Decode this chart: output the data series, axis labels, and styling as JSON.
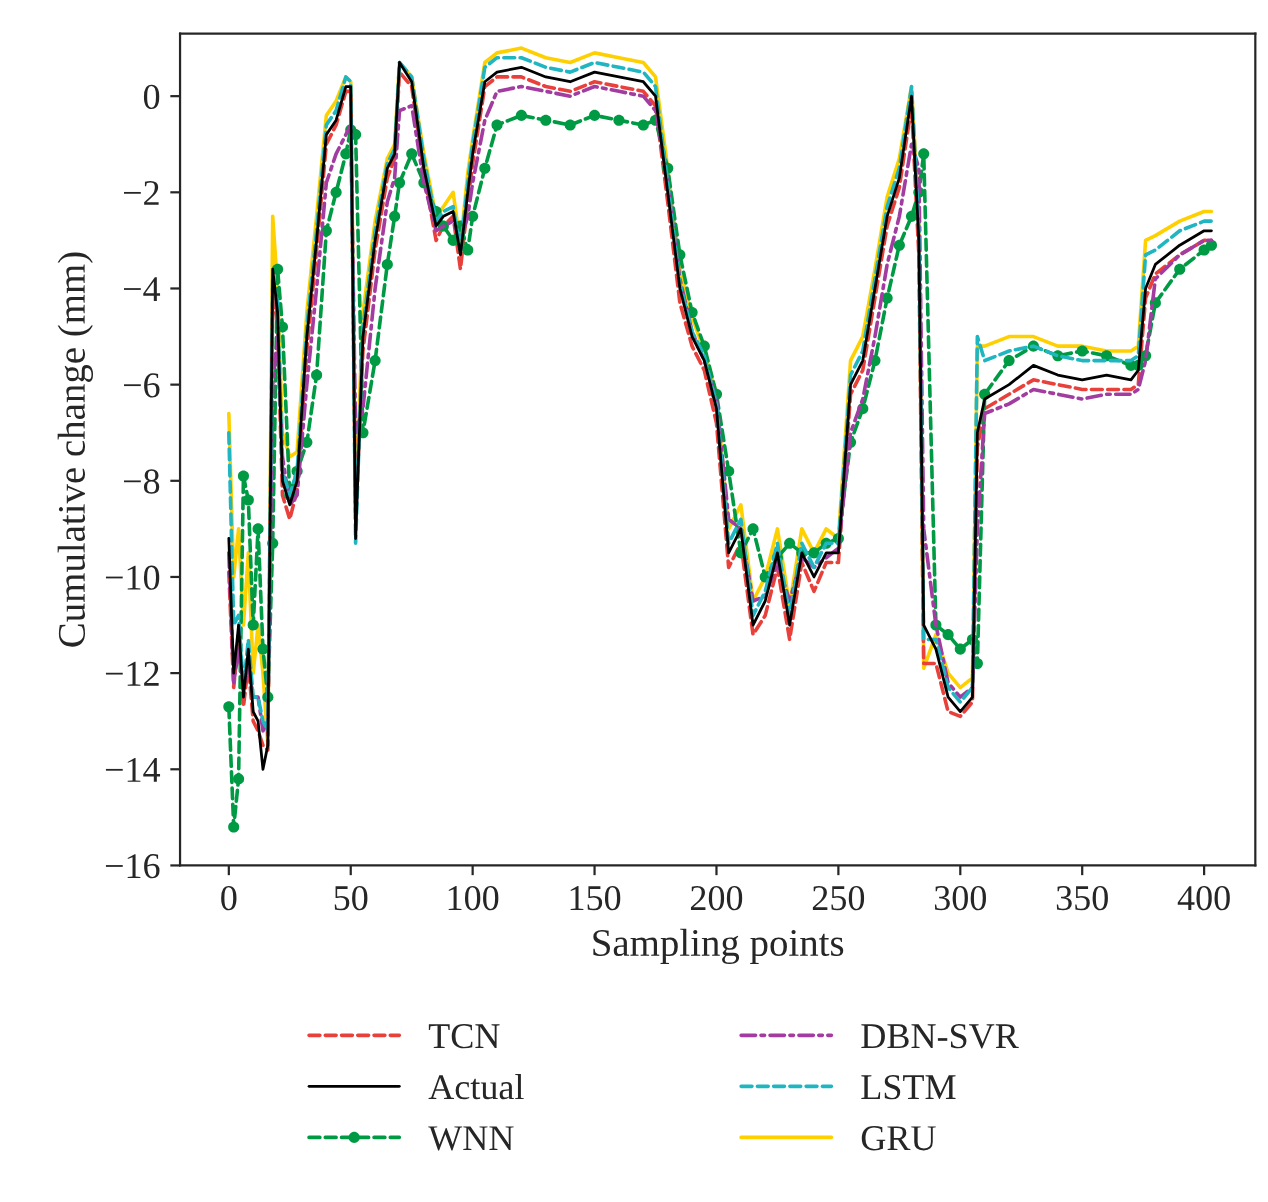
{
  "chart_data": {
    "type": "line",
    "xlabel": "Sampling points",
    "ylabel": "Cumulative change (mm)",
    "x": [
      0,
      2,
      4,
      6,
      8,
      10,
      12,
      14,
      16,
      18,
      20,
      22,
      25,
      28,
      32,
      36,
      40,
      44,
      48,
      50,
      52,
      55,
      60,
      65,
      68,
      70,
      75,
      80,
      85,
      88,
      92,
      95,
      98,
      100,
      105,
      110,
      120,
      130,
      140,
      150,
      160,
      170,
      175,
      180,
      185,
      190,
      195,
      200,
      205,
      210,
      215,
      220,
      225,
      230,
      235,
      240,
      245,
      250,
      255,
      260,
      265,
      270,
      275,
      280,
      283,
      285,
      290,
      295,
      300,
      305,
      307,
      310,
      320,
      330,
      340,
      350,
      360,
      370,
      373,
      376,
      380,
      390,
      400,
      403
    ],
    "xlim": [
      -20,
      421
    ],
    "xticks": [
      0,
      50,
      100,
      150,
      200,
      250,
      300,
      350,
      400
    ],
    "ylim": [
      -16,
      1.3
    ],
    "yticks": [
      {
        "value": -16,
        "label": "−16"
      },
      {
        "value": -14,
        "label": "−14"
      },
      {
        "value": -12,
        "label": "−12"
      },
      {
        "value": -10,
        "label": "−10"
      },
      {
        "value": -8,
        "label": "−8"
      },
      {
        "value": -6,
        "label": "−6"
      },
      {
        "value": -4,
        "label": "−4"
      },
      {
        "value": -2,
        "label": "−2"
      },
      0
    ],
    "grid": false,
    "legend": "bottom",
    "series": [
      {
        "name": "TCN",
        "color": "#e8413c",
        "line_style": "dashed",
        "values": [
          -9.9,
          -12.3,
          -11.2,
          -12.7,
          -11.8,
          -13,
          -13.2,
          -13.5,
          -13.6,
          -4,
          -4.8,
          -8.3,
          -8.8,
          -8.2,
          -5.3,
          -3.2,
          -1,
          -0.6,
          0.1,
          0.1,
          -8.8,
          -5.3,
          -3.2,
          -1.7,
          -1.3,
          0.5,
          0.2,
          -1.6,
          -3,
          -2.7,
          -2.5,
          -3.6,
          -2.2,
          -1.4,
          0.2,
          0.4,
          0.4,
          0.2,
          0.1,
          0.3,
          0.2,
          0.1,
          -0.2,
          -2.2,
          -4.3,
          -5.2,
          -5.7,
          -6.8,
          -9.8,
          -9.3,
          -11.2,
          -10.8,
          -9.8,
          -11.3,
          -9.7,
          -10.3,
          -9.7,
          -9.7,
          -6.2,
          -5.7,
          -4.2,
          -2.7,
          -1.9,
          -0.2,
          -3.3,
          -11.8,
          -11.8,
          -12.8,
          -12.9,
          -12.6,
          -7.3,
          -6.5,
          -6.2,
          -5.9,
          -6,
          -6.1,
          -6.1,
          -6.1,
          -6,
          -4.2,
          -3.7,
          -3.3,
          -3,
          -3
        ]
      },
      {
        "name": "Actual",
        "color": "#000000",
        "line_style": "solid",
        "values": [
          -9.2,
          -12,
          -11,
          -12.5,
          -11.5,
          -12.8,
          -13,
          -14,
          -13.5,
          -3.6,
          -4.5,
          -8,
          -8.5,
          -8,
          -5,
          -3,
          -0.8,
          -0.5,
          0.2,
          0.2,
          -9.2,
          -5,
          -3,
          -1.5,
          -1.2,
          0.7,
          0.3,
          -1.5,
          -2.7,
          -2.5,
          -2.4,
          -3.3,
          -2,
          -1.2,
          0.3,
          0.5,
          0.6,
          0.4,
          0.3,
          0.5,
          0.4,
          0.3,
          0,
          -2,
          -4,
          -5,
          -5.5,
          -6.5,
          -9.5,
          -9,
          -11,
          -10.5,
          -9.5,
          -11,
          -9.5,
          -10,
          -9.5,
          -9.5,
          -6,
          -5.5,
          -4,
          -2.5,
          -1.7,
          0,
          -3,
          -11,
          -11.5,
          -12.5,
          -12.8,
          -12.5,
          -7,
          -6.3,
          -6,
          -5.6,
          -5.8,
          -5.9,
          -5.8,
          -5.9,
          -5.7,
          -4,
          -3.5,
          -3.1,
          -2.8,
          -2.8
        ]
      },
      {
        "name": "WNN",
        "color": "#009a44",
        "line_style": "dashed",
        "marker": "circle",
        "values": [
          -12.7,
          -15.2,
          -14.2,
          -7.9,
          -8.4,
          -11,
          -9,
          -11.5,
          -12.5,
          -9.3,
          -3.6,
          -4.8,
          -8.3,
          -7.8,
          -7.2,
          -5.8,
          -2.8,
          -2,
          -1.2,
          -0.7,
          -0.8,
          -7,
          -5.5,
          -3.5,
          -2.5,
          -1.8,
          -1.2,
          -1.8,
          -2.4,
          -2.7,
          -3,
          -2.7,
          -3.2,
          -2.5,
          -1.5,
          -0.6,
          -0.4,
          -0.5,
          -0.6,
          -0.4,
          -0.5,
          -0.6,
          -0.5,
          -1.5,
          -3.3,
          -4.5,
          -5.2,
          -6.2,
          -7.8,
          -9.5,
          -9,
          -10,
          -9.6,
          -9.3,
          -9.5,
          -9.5,
          -9.3,
          -9.2,
          -7.2,
          -6.5,
          -5.5,
          -4.2,
          -3.1,
          -2.5,
          -2,
          -1.2,
          -11,
          -11.2,
          -11.5,
          -11.3,
          -11.8,
          -6.2,
          -5.5,
          -5.2,
          -5.4,
          -5.3,
          -5.4,
          -5.6,
          -5.6,
          -5.4,
          -4.3,
          -3.6,
          -3.2,
          -3.1
        ]
      },
      {
        "name": "DBN-SVR",
        "color": "#a23ca0",
        "line_style": "dashdot",
        "values": [
          -9.5,
          -12.2,
          -11.5,
          -12.3,
          -11.8,
          -12.5,
          -12.5,
          -13.2,
          -13,
          -6,
          -5,
          -7.5,
          -8.5,
          -8.3,
          -6,
          -4,
          -1.8,
          -1.2,
          -0.8,
          -0.6,
          -7,
          -6.5,
          -4,
          -2.2,
          -1.7,
          -0.3,
          -0.2,
          -1.8,
          -2.8,
          -2.7,
          -2.6,
          -3,
          -2.5,
          -1.8,
          -0.5,
          0.1,
          0.2,
          0.1,
          0,
          0.2,
          0.1,
          0,
          -0.3,
          -1.8,
          -3.8,
          -4.9,
          -5.5,
          -6.3,
          -8.8,
          -9,
          -10.5,
          -10.4,
          -9.7,
          -10.5,
          -9.6,
          -9.8,
          -9.6,
          -9.4,
          -7,
          -6.3,
          -5,
          -3.5,
          -2.5,
          -1,
          -1.5,
          -9,
          -11,
          -12.2,
          -12.5,
          -12.3,
          -9,
          -6.6,
          -6.4,
          -6.1,
          -6.2,
          -6.3,
          -6.2,
          -6.2,
          -6.1,
          -5.5,
          -3.8,
          -3.3,
          -3,
          -3
        ]
      },
      {
        "name": "LSTM",
        "color": "#1fb6c1",
        "line_style": "dashed",
        "values": [
          -7,
          -11,
          -10.8,
          -12.3,
          -11.3,
          -12.5,
          -12.5,
          -13,
          -13.2,
          -3.8,
          -4.3,
          -7.8,
          -8.3,
          -7.8,
          -4.8,
          -2.8,
          -0.6,
          -0.3,
          0.4,
          0.3,
          -9.3,
          -4.8,
          -2.8,
          -1.4,
          -1.1,
          0.7,
          0.4,
          -1.3,
          -2.6,
          -2.4,
          -2.3,
          -3.2,
          -1.8,
          -1,
          0.6,
          0.8,
          0.8,
          0.6,
          0.5,
          0.7,
          0.6,
          0.5,
          0.2,
          -1.8,
          -3.9,
          -4.9,
          -5.4,
          -6.4,
          -9.3,
          -8.8,
          -10.8,
          -10.3,
          -9.3,
          -10.8,
          -9.3,
          -9.8,
          -9.3,
          -9.3,
          -5.8,
          -5.3,
          -3.8,
          -2.3,
          -1.5,
          0.2,
          -2.8,
          -11.3,
          -11.3,
          -12.3,
          -12.6,
          -12.3,
          -5,
          -5.5,
          -5.3,
          -5.2,
          -5.4,
          -5.5,
          -5.5,
          -5.5,
          -5.4,
          -3.3,
          -3.2,
          -2.8,
          -2.6,
          -2.6
        ]
      },
      {
        "name": "GRU",
        "color": "#ffd000",
        "line_style": "solid",
        "values": [
          -6.6,
          -10,
          -9,
          -11,
          -9.5,
          -12,
          -11,
          -12,
          -13.5,
          -2.5,
          -4,
          -7,
          -7.5,
          -7.4,
          -4.5,
          -2.5,
          -0.4,
          -0.1,
          0.4,
          0.3,
          -8.5,
          -4.5,
          -2.6,
          -1.3,
          -1,
          0.7,
          0.4,
          -1.2,
          -2.5,
          -2.3,
          -2,
          -3.1,
          -1.6,
          -0.9,
          0.7,
          0.9,
          1,
          0.8,
          0.7,
          0.9,
          0.8,
          0.7,
          0.4,
          -1.5,
          -3.6,
          -4.6,
          -5.3,
          -6.2,
          -9,
          -8.5,
          -10.5,
          -10,
          -9,
          -10.6,
          -9,
          -9.5,
          -9,
          -9.2,
          -5.5,
          -5,
          -3.6,
          -2.1,
          -1.3,
          0.2,
          -2.5,
          -11.9,
          -11.2,
          -12,
          -12.3,
          -12.1,
          -5.2,
          -5.2,
          -5,
          -5,
          -5.2,
          -5.2,
          -5.3,
          -5.3,
          -5.2,
          -3,
          -2.9,
          -2.6,
          -2.4,
          -2.4
        ]
      }
    ]
  }
}
